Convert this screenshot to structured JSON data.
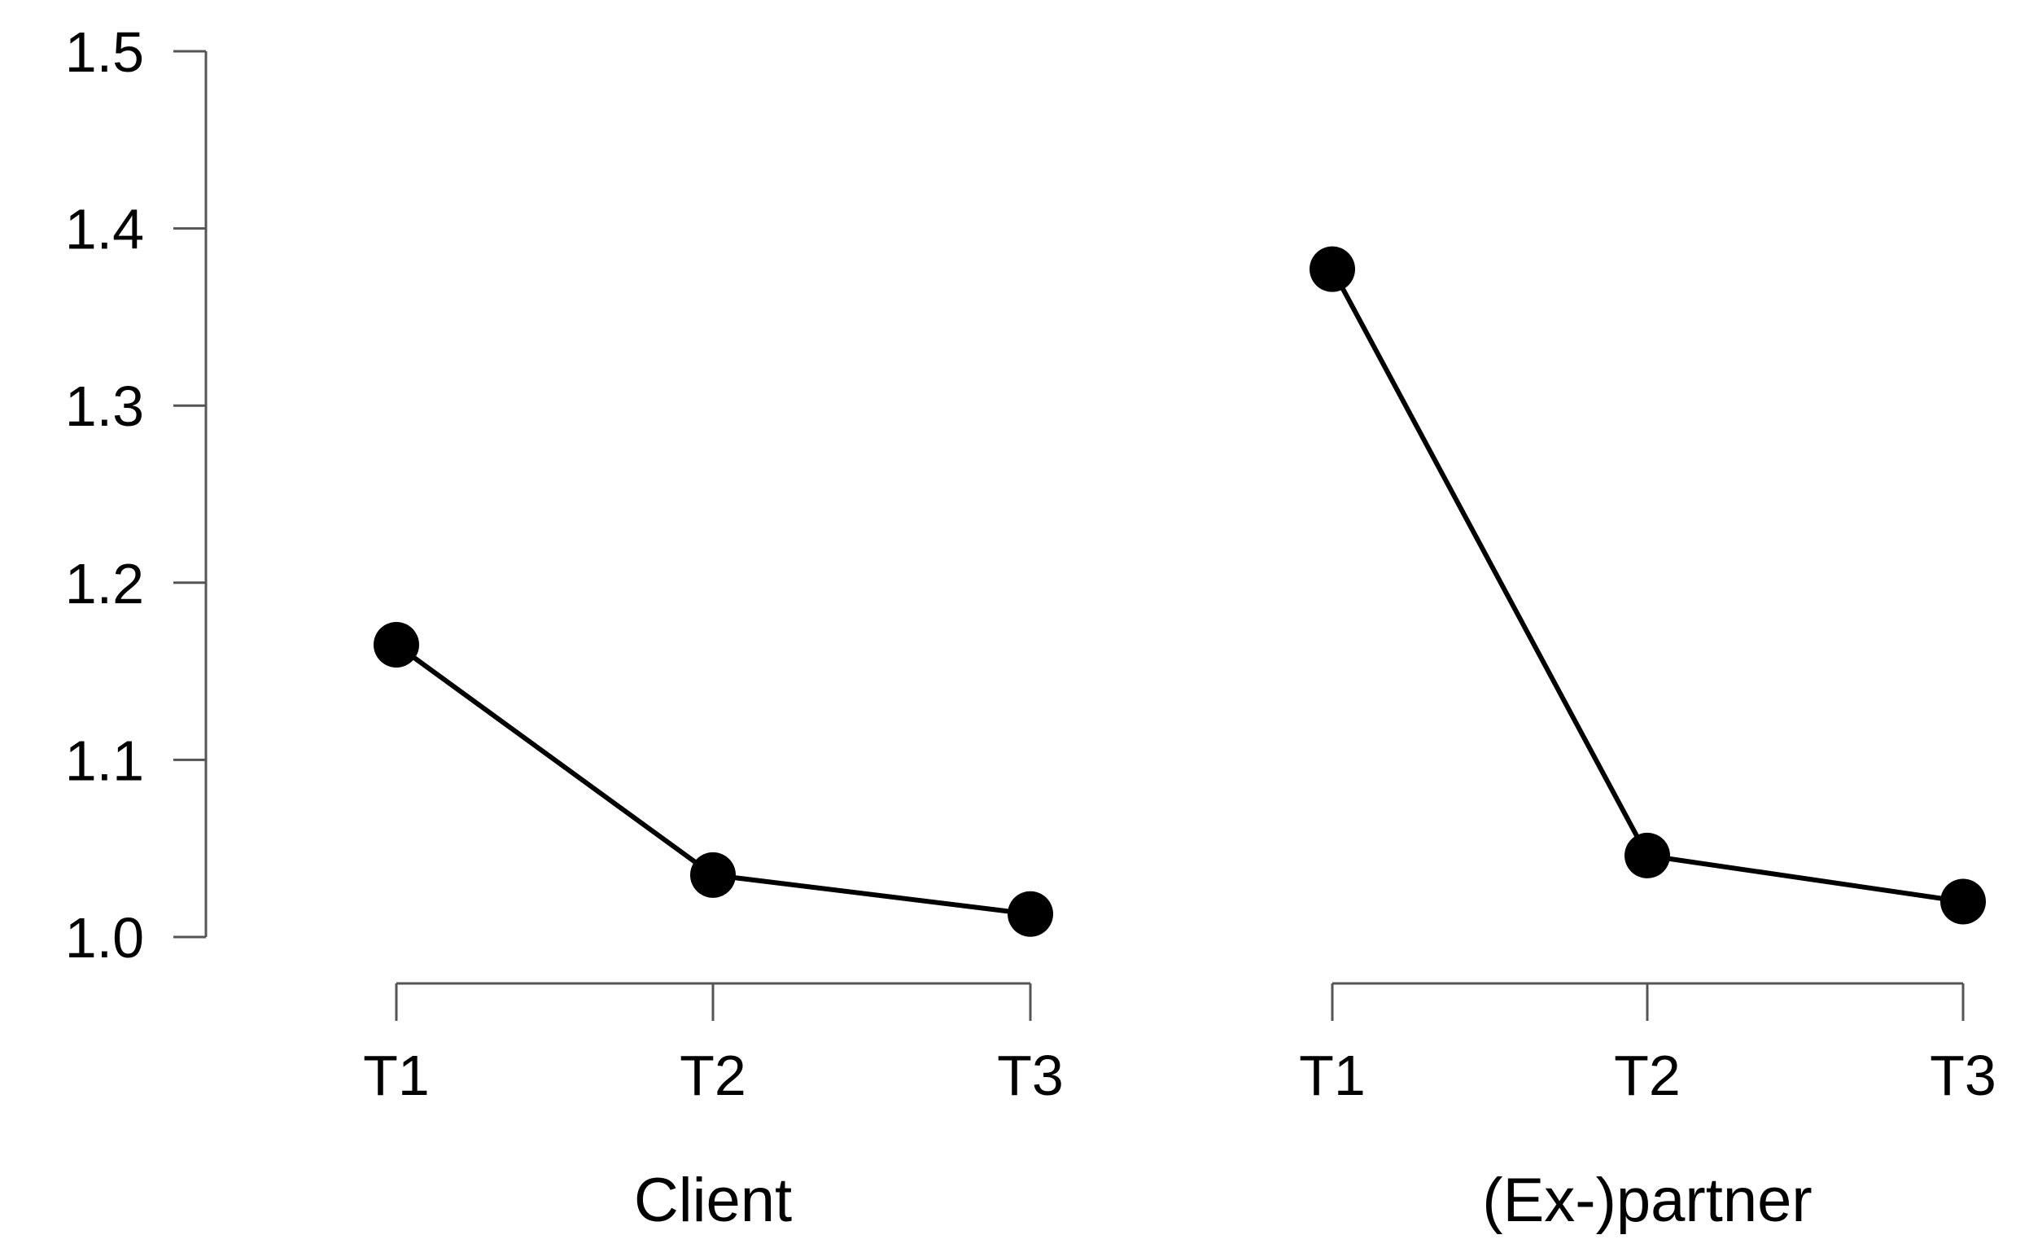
{
  "chart_data": {
    "type": "line",
    "title": "",
    "xlabel": "",
    "ylabel": "",
    "ylim": [
      1.0,
      1.5
    ],
    "y_ticks": [
      "1.0",
      "1.1",
      "1.2",
      "1.3",
      "1.4",
      "1.5"
    ],
    "y_tick_values": [
      1.0,
      1.1,
      1.2,
      1.3,
      1.4,
      1.5
    ],
    "grid": false,
    "legend": "none",
    "panels": [
      {
        "label": "Client",
        "categories": [
          "T1",
          "T2",
          "T3"
        ],
        "values": [
          1.165,
          1.035,
          1.013
        ]
      },
      {
        "label": "(Ex-)partner",
        "categories": [
          "T1",
          "T2",
          "T3"
        ],
        "values": [
          1.377,
          1.046,
          1.02
        ]
      }
    ]
  }
}
